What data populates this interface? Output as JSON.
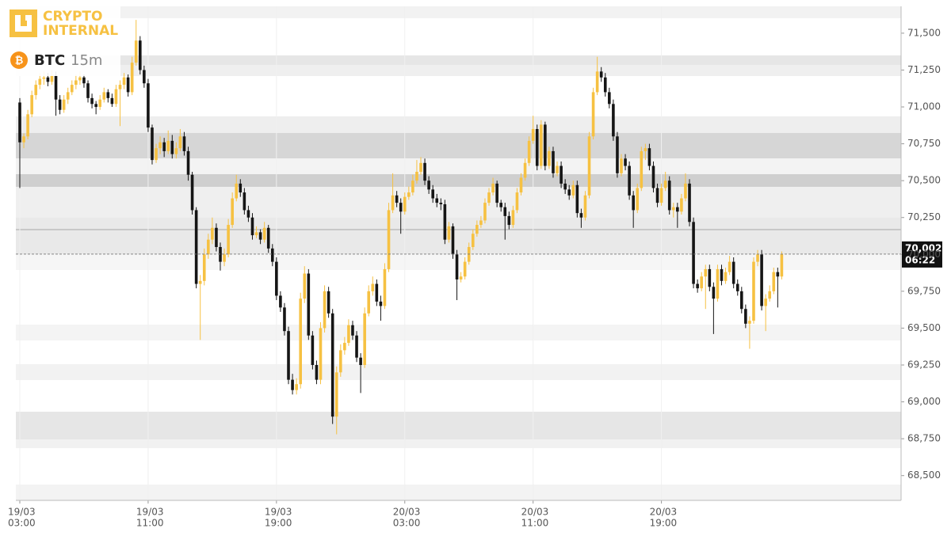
{
  "chart_data": {
    "type": "candlestick",
    "brand": [
      "CRYPTO",
      "INTERNAL"
    ],
    "symbol": "BTC",
    "interval": "15m",
    "up_color": "#f6c142",
    "down_color": "#151515",
    "ylim": [
      68332,
      71682
    ],
    "yticks": [
      {
        "value": 68500,
        "label": "68,500"
      },
      {
        "value": 68750,
        "label": "68,750"
      },
      {
        "value": 69000,
        "label": "69,000"
      },
      {
        "value": 69250,
        "label": "69,250"
      },
      {
        "value": 69500,
        "label": "69,500"
      },
      {
        "value": 69750,
        "label": "69,750"
      },
      {
        "value": 70000,
        "label": "70,000"
      },
      {
        "value": 70250,
        "label": "70,250"
      },
      {
        "value": 70500,
        "label": "70,500"
      },
      {
        "value": 70750,
        "label": "70,750"
      },
      {
        "value": 71000,
        "label": "71,000"
      },
      {
        "value": 71250,
        "label": "71,250"
      },
      {
        "value": 71500,
        "label": "71,500"
      }
    ],
    "xticks": [
      {
        "date": "19/03",
        "time": "03:00"
      },
      {
        "date": "19/03",
        "time": "11:00"
      },
      {
        "date": "19/03",
        "time": "19:00"
      },
      {
        "date": "20/03",
        "time": "03:00"
      },
      {
        "date": "20/03",
        "time": "11:00"
      },
      {
        "date": "20/03",
        "time": "19:00"
      }
    ],
    "last_price": {
      "value": 70002,
      "label": "70,002"
    },
    "countdown": "06:22",
    "candles": [
      [
        71030,
        71060,
        70450,
        70760
      ],
      [
        70760,
        70820,
        70720,
        70800
      ],
      [
        70800,
        70980,
        70780,
        70950
      ],
      [
        70950,
        71110,
        70930,
        71080
      ],
      [
        71080,
        71180,
        71050,
        71150
      ],
      [
        71150,
        71230,
        71120,
        71190
      ],
      [
        71190,
        71240,
        71150,
        71200
      ],
      [
        71200,
        71230,
        71140,
        71170
      ],
      [
        71170,
        71250,
        71150,
        71210
      ],
      [
        71210,
        71240,
        70940,
        71050
      ],
      [
        71050,
        71080,
        70950,
        70980
      ],
      [
        70980,
        71080,
        70960,
        71050
      ],
      [
        71050,
        71130,
        71020,
        71100
      ],
      [
        71100,
        71180,
        71080,
        71150
      ],
      [
        71150,
        71220,
        71120,
        71180
      ],
      [
        71180,
        71240,
        71150,
        71200
      ],
      [
        71200,
        71220,
        71130,
        71160
      ],
      [
        71160,
        71180,
        71030,
        71060
      ],
      [
        71060,
        71090,
        70990,
        71020
      ],
      [
        71020,
        71040,
        70950,
        71000
      ],
      [
        71000,
        71080,
        70980,
        71050
      ],
      [
        71050,
        71130,
        71030,
        71100
      ],
      [
        71100,
        71120,
        71030,
        71060
      ],
      [
        71060,
        71090,
        71000,
        71020
      ],
      [
        71020,
        71150,
        71000,
        71120
      ],
      [
        71120,
        71180,
        70870,
        71150
      ],
      [
        71150,
        71230,
        71120,
        71200
      ],
      [
        71200,
        71220,
        71070,
        71100
      ],
      [
        71100,
        71340,
        71080,
        71300
      ],
      [
        71300,
        71590,
        71280,
        71450
      ],
      [
        71450,
        71480,
        71220,
        71250
      ],
      [
        71250,
        71280,
        71130,
        71160
      ],
      [
        71160,
        71190,
        70830,
        70860
      ],
      [
        70860,
        70880,
        70610,
        70640
      ],
      [
        70640,
        70750,
        70620,
        70720
      ],
      [
        70720,
        70800,
        70680,
        70760
      ],
      [
        70760,
        70790,
        70660,
        70700
      ],
      [
        70700,
        70840,
        70680,
        70770
      ],
      [
        70770,
        70810,
        70650,
        70680
      ],
      [
        70680,
        70760,
        70650,
        70720
      ],
      [
        70720,
        70850,
        70700,
        70800
      ],
      [
        70800,
        70830,
        70670,
        70700
      ],
      [
        70700,
        70730,
        70500,
        70540
      ],
      [
        70540,
        70560,
        70270,
        70300
      ],
      [
        70300,
        70320,
        69770,
        69800
      ],
      [
        69800,
        69860,
        69420,
        69820
      ],
      [
        69820,
        70040,
        69790,
        70000
      ],
      [
        70000,
        70140,
        69970,
        70100
      ],
      [
        70100,
        70250,
        70070,
        70180
      ],
      [
        70180,
        70210,
        70020,
        70050
      ],
      [
        70050,
        70080,
        69890,
        69950
      ],
      [
        69950,
        70040,
        69920,
        70000
      ],
      [
        70000,
        70240,
        69980,
        70200
      ],
      [
        70200,
        70420,
        70180,
        70380
      ],
      [
        70380,
        70540,
        70360,
        70480
      ],
      [
        70480,
        70510,
        70390,
        70420
      ],
      [
        70420,
        70450,
        70270,
        70300
      ],
      [
        70300,
        70330,
        70220,
        70250
      ],
      [
        70250,
        70280,
        70100,
        70130
      ],
      [
        70130,
        70190,
        70110,
        70150
      ],
      [
        70150,
        70170,
        70070,
        70100
      ],
      [
        70100,
        70220,
        70080,
        70180
      ],
      [
        70180,
        70200,
        70010,
        70040
      ],
      [
        70040,
        70070,
        69920,
        69950
      ],
      [
        69950,
        69980,
        69690,
        69720
      ],
      [
        69720,
        69750,
        69610,
        69640
      ],
      [
        69640,
        69670,
        69450,
        69480
      ],
      [
        69480,
        69510,
        69120,
        69150
      ],
      [
        69150,
        69190,
        69050,
        69080
      ],
      [
        69080,
        69160,
        69050,
        69120
      ],
      [
        69120,
        69740,
        69090,
        69700
      ],
      [
        69700,
        69920,
        69670,
        69870
      ],
      [
        69870,
        69900,
        69420,
        69450
      ],
      [
        69450,
        69480,
        69220,
        69250
      ],
      [
        69250,
        69280,
        69120,
        69150
      ],
      [
        69150,
        69540,
        69120,
        69500
      ],
      [
        69500,
        69790,
        69470,
        69750
      ],
      [
        69750,
        69780,
        69570,
        69600
      ],
      [
        69600,
        69630,
        68850,
        68900
      ],
      [
        68900,
        69240,
        68780,
        69200
      ],
      [
        69200,
        69390,
        69170,
        69350
      ],
      [
        69350,
        69440,
        69320,
        69400
      ],
      [
        69400,
        69560,
        69380,
        69520
      ],
      [
        69520,
        69550,
        69420,
        69450
      ],
      [
        69450,
        69480,
        69270,
        69300
      ],
      [
        69300,
        69330,
        69060,
        69250
      ],
      [
        69250,
        69640,
        69230,
        69600
      ],
      [
        69600,
        69790,
        69580,
        69750
      ],
      [
        69750,
        69850,
        69720,
        69800
      ],
      [
        69800,
        69830,
        69650,
        69680
      ],
      [
        69680,
        69720,
        69550,
        69650
      ],
      [
        69650,
        69940,
        69630,
        69900
      ],
      [
        69900,
        70350,
        69880,
        70300
      ],
      [
        70300,
        70550,
        70280,
        70400
      ],
      [
        70400,
        70430,
        70320,
        70350
      ],
      [
        70350,
        70380,
        70140,
        70290
      ],
      [
        70290,
        70420,
        70270,
        70390
      ],
      [
        70390,
        70460,
        70370,
        70420
      ],
      [
        70420,
        70540,
        70400,
        70500
      ],
      [
        70500,
        70640,
        70480,
        70560
      ],
      [
        70560,
        70660,
        70540,
        70620
      ],
      [
        70620,
        70650,
        70470,
        70500
      ],
      [
        70500,
        70530,
        70410,
        70440
      ],
      [
        70440,
        70470,
        70350,
        70380
      ],
      [
        70380,
        70410,
        70320,
        70350
      ],
      [
        70350,
        70380,
        70300,
        70340
      ],
      [
        70340,
        70370,
        70070,
        70100
      ],
      [
        70100,
        70220,
        70080,
        70190
      ],
      [
        70190,
        70210,
        69970,
        70000
      ],
      [
        70000,
        70030,
        69690,
        69830
      ],
      [
        69830,
        69880,
        69810,
        69850
      ],
      [
        69850,
        69980,
        69830,
        69950
      ],
      [
        69950,
        70080,
        69930,
        70050
      ],
      [
        70050,
        70170,
        70030,
        70140
      ],
      [
        70140,
        70230,
        70120,
        70200
      ],
      [
        70200,
        70260,
        70180,
        70230
      ],
      [
        70230,
        70380,
        70210,
        70350
      ],
      [
        70350,
        70450,
        70330,
        70420
      ],
      [
        70420,
        70520,
        70400,
        70480
      ],
      [
        70480,
        70500,
        70320,
        70350
      ],
      [
        70350,
        70370,
        70290,
        70320
      ],
      [
        70320,
        70350,
        70100,
        70260
      ],
      [
        70260,
        70290,
        70170,
        70200
      ],
      [
        70200,
        70330,
        70180,
        70300
      ],
      [
        70300,
        70450,
        70280,
        70420
      ],
      [
        70420,
        70550,
        70400,
        70520
      ],
      [
        70520,
        70650,
        70500,
        70620
      ],
      [
        70620,
        70800,
        70600,
        70770
      ],
      [
        70770,
        70940,
        70750,
        70850
      ],
      [
        70850,
        70880,
        70570,
        70600
      ],
      [
        70600,
        70910,
        70580,
        70880
      ],
      [
        70880,
        70900,
        70570,
        70600
      ],
      [
        70600,
        70730,
        70580,
        70700
      ],
      [
        70700,
        70730,
        70520,
        70550
      ],
      [
        70550,
        70630,
        70530,
        70600
      ],
      [
        70600,
        70630,
        70450,
        70480
      ],
      [
        70480,
        70510,
        70410,
        70440
      ],
      [
        70440,
        70470,
        70370,
        70400
      ],
      [
        70400,
        70500,
        70380,
        70470
      ],
      [
        70470,
        70500,
        70250,
        70280
      ],
      [
        70280,
        70310,
        70180,
        70250
      ],
      [
        70250,
        70430,
        70230,
        70400
      ],
      [
        70400,
        70830,
        70380,
        70800
      ],
      [
        70800,
        71130,
        70780,
        71100
      ],
      [
        71100,
        71340,
        71080,
        71240
      ],
      [
        71240,
        71270,
        71170,
        71200
      ],
      [
        71200,
        71230,
        71070,
        71100
      ],
      [
        71100,
        71130,
        70990,
        71020
      ],
      [
        71020,
        71050,
        70770,
        70800
      ],
      [
        70800,
        70830,
        70520,
        70550
      ],
      [
        70550,
        70680,
        70530,
        70650
      ],
      [
        70650,
        70680,
        70570,
        70600
      ],
      [
        70600,
        70630,
        70370,
        70400
      ],
      [
        70400,
        70430,
        70180,
        70300
      ],
      [
        70300,
        70480,
        70280,
        70450
      ],
      [
        70450,
        70730,
        70430,
        70700
      ],
      [
        70700,
        70750,
        70640,
        70720
      ],
      [
        70720,
        70750,
        70570,
        70600
      ],
      [
        70600,
        70630,
        70420,
        70450
      ],
      [
        70450,
        70480,
        70320,
        70350
      ],
      [
        70350,
        70480,
        70330,
        70450
      ],
      [
        70450,
        70560,
        70430,
        70500
      ],
      [
        70500,
        70530,
        70270,
        70300
      ],
      [
        70300,
        70350,
        70250,
        70320
      ],
      [
        70320,
        70350,
        70180,
        70290
      ],
      [
        70290,
        70410,
        70270,
        70380
      ],
      [
        70380,
        70550,
        70360,
        70480
      ],
      [
        70480,
        70510,
        70190,
        70220
      ],
      [
        70220,
        70250,
        69770,
        69800
      ],
      [
        69800,
        69830,
        69740,
        69770
      ],
      [
        69770,
        69880,
        69750,
        69850
      ],
      [
        69850,
        69930,
        69630,
        69900
      ],
      [
        69900,
        69930,
        69750,
        69780
      ],
      [
        69780,
        69810,
        69460,
        69700
      ],
      [
        69700,
        69930,
        69680,
        69900
      ],
      [
        69900,
        69930,
        69790,
        69820
      ],
      [
        69820,
        69910,
        69800,
        69880
      ],
      [
        69880,
        69990,
        69860,
        69950
      ],
      [
        69950,
        69980,
        69770,
        69800
      ],
      [
        69800,
        69830,
        69720,
        69750
      ],
      [
        69750,
        69780,
        69600,
        69630
      ],
      [
        69630,
        69660,
        69500,
        69530
      ],
      [
        69530,
        69580,
        69360,
        69550
      ],
      [
        69550,
        69980,
        69530,
        69950
      ],
      [
        69950,
        70030,
        69920,
        70000
      ],
      [
        70000,
        70030,
        69620,
        69650
      ],
      [
        69650,
        69730,
        69480,
        69700
      ],
      [
        69700,
        69790,
        69680,
        69750
      ],
      [
        69750,
        69910,
        69730,
        69880
      ],
      [
        69880,
        69910,
        69640,
        69850
      ],
      [
        69850,
        70020,
        69830,
        70002
      ]
    ]
  }
}
